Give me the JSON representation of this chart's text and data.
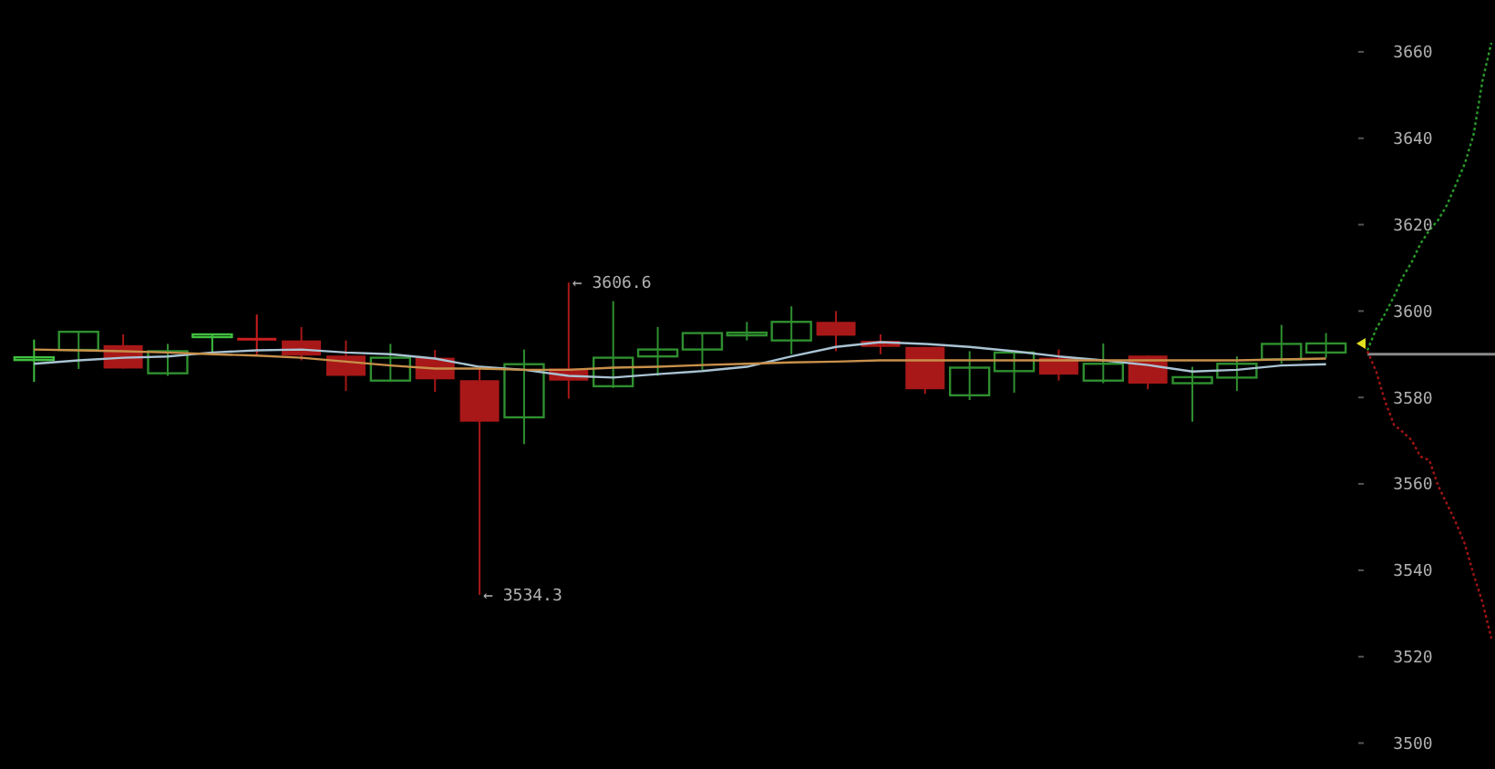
{
  "chart_data": [
    {
      "type": "candlestick",
      "categories": [
        null,
        null,
        null,
        null,
        null,
        null,
        null,
        null,
        null,
        null,
        null,
        null,
        null,
        null,
        null,
        null,
        null,
        null,
        null,
        null,
        null,
        null,
        null,
        null,
        null,
        null,
        null,
        null,
        null,
        null
      ],
      "ohlc": [
        [
          3589.2,
          3593.4,
          3583.6,
          3589.3
        ],
        [
          3591.0,
          3595.2,
          3586.6,
          3595.2
        ],
        [
          3592.1,
          3594.6,
          3586.7,
          3586.7
        ],
        [
          3585.6,
          3592.4,
          3585.0,
          3590.7
        ],
        [
          3594.4,
          3594.6,
          3590.0,
          3594.6
        ],
        [
          3593.8,
          3599.2,
          3590.0,
          3593.6
        ],
        [
          3593.2,
          3596.3,
          3588.6,
          3589.7
        ],
        [
          3589.7,
          3593.2,
          3581.5,
          3585.0
        ],
        [
          3583.9,
          3592.4,
          3583.6,
          3589.2
        ],
        [
          3589.2,
          3591.0,
          3581.3,
          3584.2
        ],
        [
          3584.0,
          3587.1,
          3534.3,
          3574.4
        ],
        [
          3575.4,
          3591.1,
          3569.2,
          3587.7
        ],
        [
          3586.7,
          3606.6,
          3579.7,
          3583.9
        ],
        [
          3582.6,
          3602.3,
          3582.2,
          3589.2
        ],
        [
          3589.5,
          3596.3,
          3585.0,
          3591.1
        ],
        [
          3591.1,
          3594.9,
          3586.4,
          3594.9
        ],
        [
          3594.8,
          3597.5,
          3593.2,
          3595.0
        ],
        [
          3593.2,
          3601.1,
          3590.0,
          3597.5
        ],
        [
          3597.5,
          3600.0,
          3590.7,
          3594.3
        ],
        [
          3593.1,
          3594.6,
          3590.0,
          3591.7
        ],
        [
          3591.7,
          3591.7,
          3580.8,
          3581.9
        ],
        [
          3580.5,
          3590.7,
          3579.4,
          3586.9
        ],
        [
          3586.1,
          3590.4,
          3581.1,
          3590.4
        ],
        [
          3589.2,
          3591.1,
          3583.9,
          3585.3
        ],
        [
          3583.9,
          3592.5,
          3583.3,
          3587.8
        ],
        [
          3589.7,
          3589.7,
          3581.9,
          3583.2
        ],
        [
          3583.3,
          3587.1,
          3574.4,
          3584.7
        ],
        [
          3584.6,
          3589.5,
          3581.5,
          3587.8
        ],
        [
          3588.8,
          3596.8,
          3587.8,
          3592.4
        ],
        [
          3590.4,
          3594.9,
          3589.2,
          3592.5
        ]
      ],
      "colors": [
        "#3fbf3f",
        "#2f8f2f",
        "#a81818",
        "#2f8f2f",
        "#3fbf3f",
        "#c81e1e",
        "#a81818",
        "#a81818",
        "#2f8f2f",
        "#a81818",
        "#a81818",
        "#2f8f2f",
        "#a81818",
        "#2f8f2f",
        "#2f8f2f",
        "#2f8f2f",
        "#2f8f2f",
        "#2f8f2f",
        "#a81818",
        "#a81818",
        "#a81818",
        "#2f8f2f",
        "#2f8f2f",
        "#a81818",
        "#2f8f2f",
        "#a81818",
        "#2f8f2f",
        "#2f8f2f",
        "#2f8f2f",
        "#2f8f2f"
      ],
      "series": [
        {
          "type": "line",
          "color": "#a9c3d3",
          "values": [
            3587.8,
            3588.6,
            3589.2,
            3589.5,
            3590.4,
            3590.9,
            3591.1,
            3590.4,
            3590.0,
            3589.0,
            3587.1,
            3586.4,
            3585.0,
            3584.6,
            3585.4,
            3586.1,
            3587.1,
            3589.5,
            3591.7,
            3592.8,
            3592.4,
            3591.7,
            3590.7,
            3589.5,
            3588.6,
            3587.5,
            3586.0,
            3586.4,
            3587.4,
            3587.7
          ]
        },
        {
          "type": "line",
          "color": "#c8904a",
          "values": [
            3591.1,
            3590.9,
            3590.7,
            3590.4,
            3590.0,
            3589.7,
            3589.2,
            3588.3,
            3587.4,
            3586.7,
            3586.7,
            3586.4,
            3586.4,
            3586.9,
            3587.1,
            3587.5,
            3587.8,
            3588.1,
            3588.3,
            3588.6,
            3588.6,
            3588.6,
            3588.6,
            3588.6,
            3588.6,
            3588.6,
            3588.6,
            3588.6,
            3588.8,
            3589.0
          ]
        }
      ],
      "annotations": [
        "← 3606.6",
        "← 3534.3"
      ],
      "ylim": [
        3494,
        3672
      ],
      "tick_labels": false,
      "grid": false
    },
    {
      "type": "line",
      "categories": [
        null,
        null,
        null,
        null,
        null,
        null,
        null,
        null,
        null,
        null,
        null,
        null,
        null,
        null,
        null
      ],
      "series": [
        {
          "color": "#2a9a2a",
          "values": [
            3590.9,
            3595.9,
            3599.4,
            3603.4,
            3607.9,
            3611.3,
            3615.6,
            3618.7,
            3621.1,
            3624.6,
            3629.3,
            3634.1,
            3640.9,
            3653.3,
            3662.1
          ]
        },
        {
          "color": "#a01515",
          "values": [
            3590.7,
            3586.0,
            3579.1,
            3573.7,
            3572.0,
            3570.1,
            3566.3,
            3565.5,
            3559.5,
            3555.3,
            3551.0,
            3546.1,
            3539.0,
            3532.6,
            3524.2
          ]
        }
      ],
      "ref_lines": [
        {
          "axis": "y",
          "value": 3590,
          "color": "#8a8a8a"
        }
      ],
      "ylim": [
        3494,
        3672
      ],
      "yticks": [
        3500,
        3520,
        3540,
        3560,
        3580,
        3600,
        3620,
        3640,
        3660
      ],
      "tick_labels": "y",
      "grid": false,
      "line_style": "dotted"
    }
  ]
}
